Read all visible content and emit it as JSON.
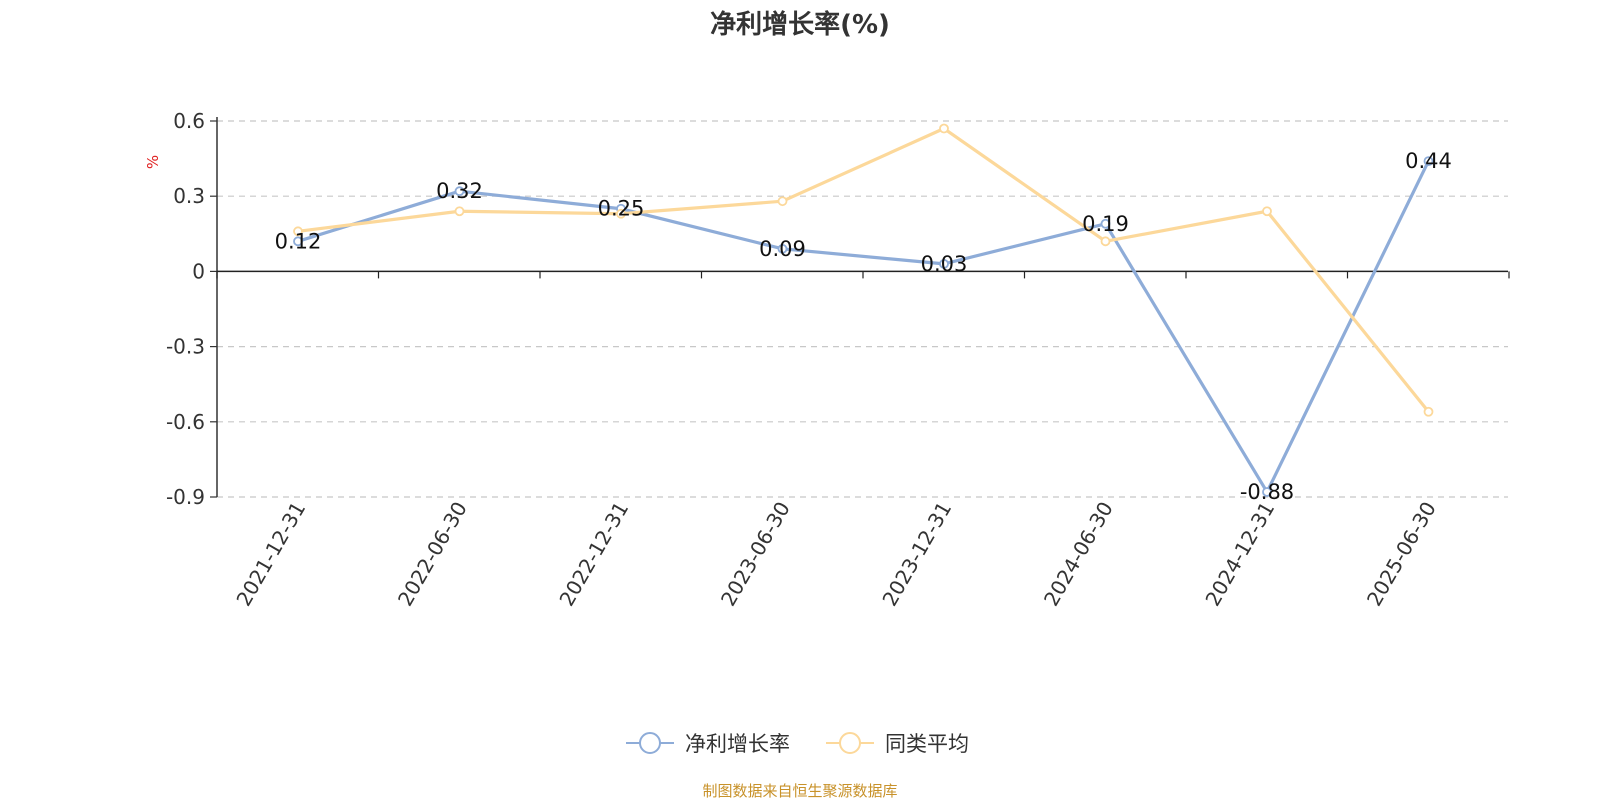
{
  "chart_data": {
    "type": "line",
    "title": "净利增长率(%)",
    "ylabel": "%",
    "xlabel": "",
    "categories": [
      "2021-12-31",
      "2022-06-30",
      "2022-12-31",
      "2023-06-30",
      "2023-12-31",
      "2024-06-30",
      "2024-12-31",
      "2025-06-30"
    ],
    "y_ticks": [
      0.6,
      0.3,
      0,
      -0.3,
      -0.6,
      -0.9
    ],
    "ylim": [
      -0.9,
      0.6
    ],
    "grid": true,
    "legend_position": "bottom",
    "series": [
      {
        "name": "净利增长率",
        "color": "#8eacd8",
        "values": [
          0.12,
          0.32,
          0.25,
          0.09,
          0.03,
          0.19,
          -0.88,
          0.44
        ],
        "labels": [
          "0.12",
          "0.32",
          "0.25",
          "0.09",
          "0.03",
          "0.19",
          "-0.88",
          "0.44"
        ]
      },
      {
        "name": "同类平均",
        "color": "#fcd89a",
        "values": [
          0.16,
          0.24,
          0.23,
          0.28,
          0.57,
          0.12,
          0.24,
          -0.56
        ]
      }
    ]
  },
  "source_note": "制图数据来自恒生聚源数据库"
}
